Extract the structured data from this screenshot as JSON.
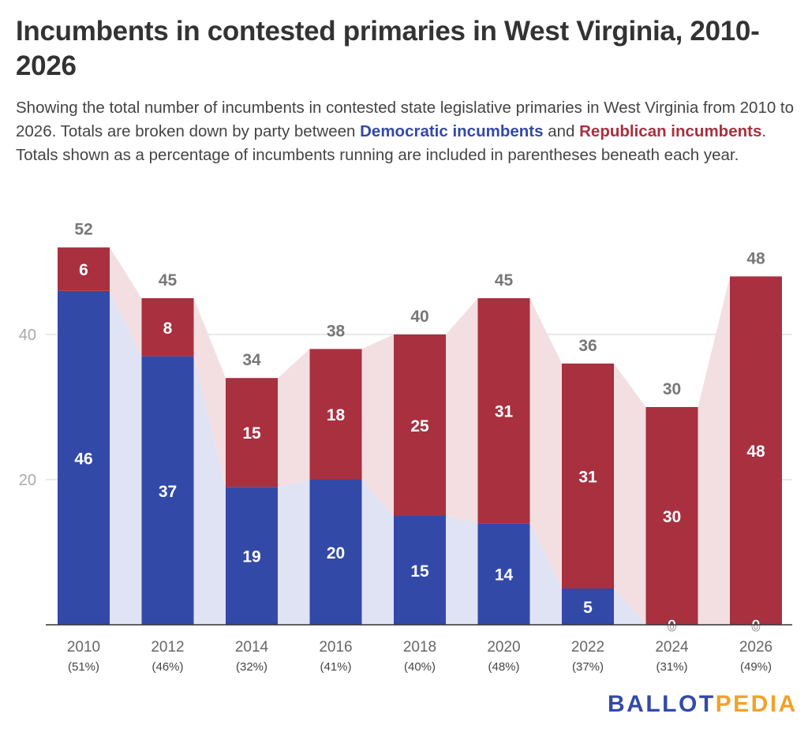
{
  "title": "Incumbents in contested primaries in West Virginia, 2010-2026",
  "subtitle": {
    "part1": "Showing the total number of incumbents in contested state legislative primaries in West Virginia from 2010 to 2026. Totals are broken down by party between ",
    "dem_label": "Democratic incumbents",
    "part2": " and ",
    "rep_label": "Republican incumbents",
    "part3": ". Totals shown as a percentage of incumbents running are included in parentheses beneath each year."
  },
  "logo": {
    "left": "BALLOT",
    "right": "PEDIA"
  },
  "chart_data": {
    "type": "bar",
    "stacked": true,
    "categories": [
      "2010",
      "2012",
      "2014",
      "2016",
      "2018",
      "2020",
      "2022",
      "2024",
      "2026"
    ],
    "category_sublabels": [
      "(51%)",
      "(46%)",
      "(32%)",
      "(41%)",
      "(40%)",
      "(48%)",
      "(37%)",
      "(31%)",
      "(49%)"
    ],
    "series": [
      {
        "key": "democratic",
        "values": [
          46,
          37,
          19,
          20,
          15,
          14,
          5,
          0,
          0
        ],
        "color": "#3349a8",
        "area_color": "#dfe3f3"
      },
      {
        "key": "republican",
        "values": [
          6,
          8,
          15,
          18,
          25,
          31,
          31,
          30,
          48
        ],
        "color": "#a8303f",
        "area_color": "#f3dfe1"
      }
    ],
    "totals": [
      52,
      45,
      34,
      38,
      40,
      45,
      36,
      30,
      48
    ],
    "ylim": [
      0,
      55
    ],
    "yticks": [
      20,
      40
    ],
    "grid": true,
    "legend": "none"
  }
}
